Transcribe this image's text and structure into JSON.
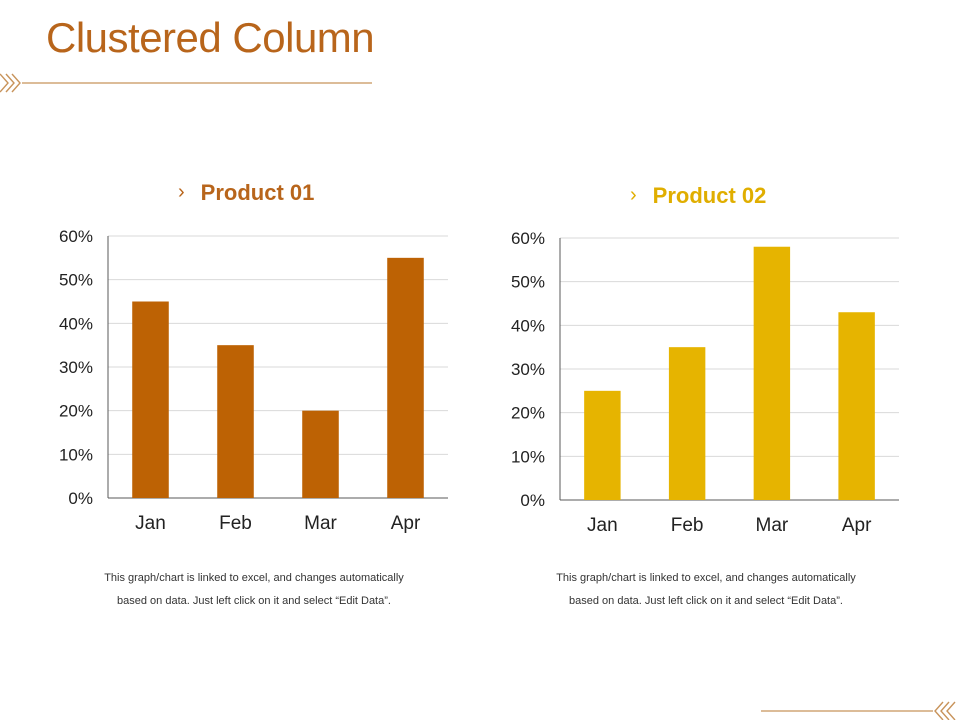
{
  "page": {
    "title": "Clustered Column",
    "accent_color": "#b8651b",
    "decoration": "chevron-line"
  },
  "chart_data": [
    {
      "type": "bar",
      "title": "Product 01",
      "categories": [
        "Jan",
        "Feb",
        "Mar",
        "Apr"
      ],
      "values": [
        45,
        35,
        20,
        55
      ],
      "ylim": [
        0,
        60
      ],
      "yticks": [
        "0%",
        "10%",
        "20%",
        "30%",
        "40%",
        "50%",
        "60%"
      ],
      "xlabel": "",
      "ylabel": "",
      "color": "#bd6204",
      "title_color": "#b8651b",
      "grid": true,
      "legend": "none"
    },
    {
      "type": "bar",
      "title": "Product 02",
      "categories": [
        "Jan",
        "Feb",
        "Mar",
        "Apr"
      ],
      "values": [
        25,
        35,
        58,
        43
      ],
      "ylim": [
        0,
        60
      ],
      "yticks": [
        "0%",
        "10%",
        "20%",
        "30%",
        "40%",
        "50%",
        "60%"
      ],
      "xlabel": "",
      "ylabel": "",
      "color": "#e6b400",
      "title_color": "#e0ae00",
      "grid": true,
      "legend": "none"
    }
  ],
  "captions": [
    {
      "line1": "This graph/chart is linked to excel, and changes automatically",
      "line2": "based on data. Just left click on it and select “Edit Data”."
    },
    {
      "line1": "This graph/chart is linked to excel, and changes automatically",
      "line2": "based on data. Just left click on it and select “Edit Data”."
    }
  ]
}
